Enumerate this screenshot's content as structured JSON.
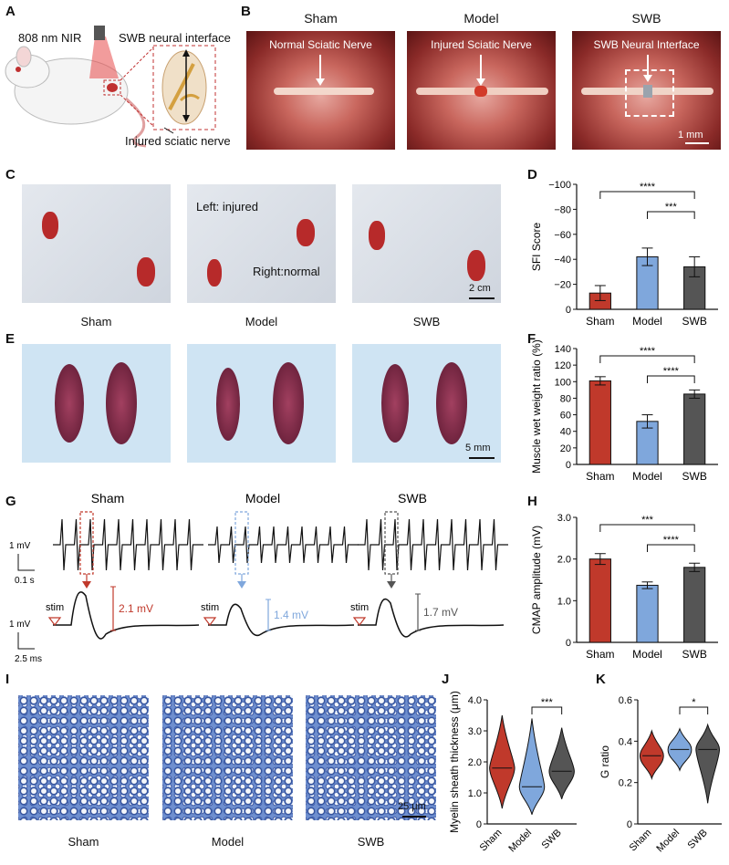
{
  "panels": {
    "A": {
      "letter": "A",
      "nir": "808 nm NIR",
      "interface": "SWB neural interface",
      "injured": "Injured sciatic nerve"
    },
    "B": {
      "letter": "B",
      "groups": [
        "Sham",
        "Model",
        "SWB"
      ],
      "annotations": [
        "Normal Sciatic Nerve",
        "Injured Sciatic Nerve",
        "SWB Neural Interface"
      ],
      "scale": "1 mm"
    },
    "C": {
      "letter": "C",
      "left_note": "Left: injured",
      "right_note": "Right:normal",
      "scale": "2 cm",
      "groups": [
        "Sham",
        "Model",
        "SWB"
      ]
    },
    "D": {
      "letter": "D"
    },
    "E": {
      "letter": "E",
      "scale": "5 mm"
    },
    "F": {
      "letter": "F"
    },
    "G": {
      "letter": "G",
      "groups": [
        "Sham",
        "Model",
        "SWB"
      ],
      "scale_top_v": "1 mV",
      "scale_top_t": "0.1 s",
      "scale_bot_v": "1 mV",
      "scale_bot_t": "2.5 ms",
      "stim": "stim",
      "amplitudes": [
        "2.1 mV",
        "1.4 mV",
        "1.7 mV"
      ]
    },
    "H": {
      "letter": "H"
    },
    "I": {
      "letter": "I",
      "scale": "25 μm",
      "groups": [
        "Sham",
        "Model",
        "SWB"
      ]
    },
    "J": {
      "letter": "J"
    },
    "K": {
      "letter": "K"
    }
  },
  "colors": {
    "sham": "#c0392b",
    "model": "#7fa7dc",
    "swb": "#555555"
  },
  "chart_data": [
    {
      "id": "D",
      "type": "bar",
      "categories": [
        "Sham",
        "Model",
        "SWB"
      ],
      "values": [
        -13,
        -42,
        -34
      ],
      "errors": [
        6,
        7,
        8
      ],
      "ylabel": "SFI Score",
      "ylim": [
        0,
        -100
      ],
      "yticks": [
        "0",
        "−20",
        "−40",
        "−60",
        "−80",
        "−100"
      ],
      "sig": [
        {
          "a": 0,
          "b": 2,
          "label": "****"
        },
        {
          "a": 1,
          "b": 2,
          "label": "***"
        }
      ]
    },
    {
      "id": "F",
      "type": "bar",
      "categories": [
        "Sham",
        "Model",
        "SWB"
      ],
      "values": [
        101,
        52,
        85
      ],
      "errors": [
        5,
        8,
        5
      ],
      "ylabel": "Muscle wet weight ratio (%)",
      "ylim": [
        0,
        140
      ],
      "yticks": [
        "0",
        "20",
        "40",
        "60",
        "80",
        "100",
        "120",
        "140"
      ],
      "sig": [
        {
          "a": 0,
          "b": 2,
          "label": "****"
        },
        {
          "a": 1,
          "b": 2,
          "label": "****"
        }
      ]
    },
    {
      "id": "H",
      "type": "bar",
      "categories": [
        "Sham",
        "Model",
        "SWB"
      ],
      "values": [
        2.0,
        1.37,
        1.8
      ],
      "errors": [
        0.13,
        0.08,
        0.1
      ],
      "ylabel": "CMAP amplitude (mV)",
      "ylim": [
        0,
        3.0
      ],
      "yticks": [
        "0",
        "1.0",
        "2.0",
        "3.0"
      ],
      "sig": [
        {
          "a": 0,
          "b": 2,
          "label": "***"
        },
        {
          "a": 1,
          "b": 2,
          "label": "****"
        }
      ]
    },
    {
      "id": "J",
      "type": "violin",
      "categories": [
        "Sham",
        "Model",
        "SWB"
      ],
      "medians": [
        1.8,
        1.2,
        1.7
      ],
      "ranges": [
        [
          0.5,
          3.5
        ],
        [
          0.3,
          3.4
        ],
        [
          0.8,
          3.1
        ]
      ],
      "ylabel": "Myelin sheath thickness (μm)",
      "ylim": [
        0,
        4.0
      ],
      "yticks": [
        "0",
        "1.0",
        "2.0",
        "3.0",
        "4.0"
      ],
      "sig": [
        {
          "a": 1,
          "b": 2,
          "label": "***"
        }
      ]
    },
    {
      "id": "K",
      "type": "violin",
      "categories": [
        "Sham",
        "Model",
        "SWB"
      ],
      "medians": [
        0.33,
        0.36,
        0.36
      ],
      "ranges": [
        [
          0.22,
          0.45
        ],
        [
          0.26,
          0.46
        ],
        [
          0.1,
          0.48
        ]
      ],
      "ylabel": "G ratio",
      "ylim": [
        0,
        0.6
      ],
      "yticks": [
        "0",
        "0.2",
        "0.4",
        "0.6"
      ],
      "sig": [
        {
          "a": 1,
          "b": 2,
          "label": "*"
        }
      ]
    }
  ]
}
